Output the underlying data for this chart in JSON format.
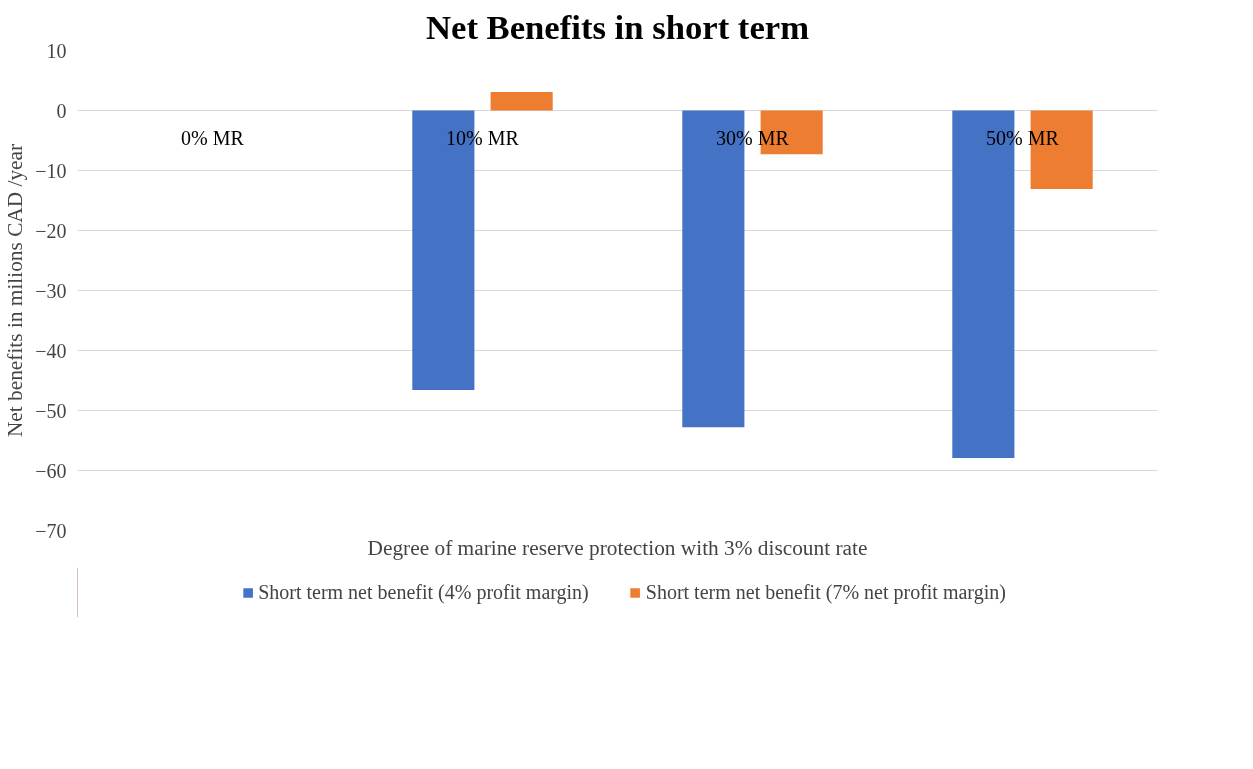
{
  "chart_data": {
    "type": "bar",
    "title": "Net Benefits in short term",
    "xlabel": "Degree of marine reserve protection with 3% discount rate",
    "ylabel": "Net benefits in milions CAD /year",
    "categories": [
      "0% MR",
      "10% MR",
      "30% MR",
      "50% MR"
    ],
    "series": [
      {
        "name": "Short term net benefit (4% profit margin)",
        "color": "#4472c4",
        "values": [
          0,
          -46.6,
          -52.8,
          -57.9
        ]
      },
      {
        "name": "Short term net benefit (7% net profit margin)",
        "color": "#ed7d31",
        "values": [
          0,
          3.1,
          -7.3,
          -13.1
        ]
      }
    ],
    "ylim": [
      -70,
      10
    ],
    "yticks": [
      -70,
      -60,
      -50,
      -40,
      -30,
      -20,
      -10,
      0,
      10
    ],
    "grid": "y",
    "legend": "bottom"
  }
}
